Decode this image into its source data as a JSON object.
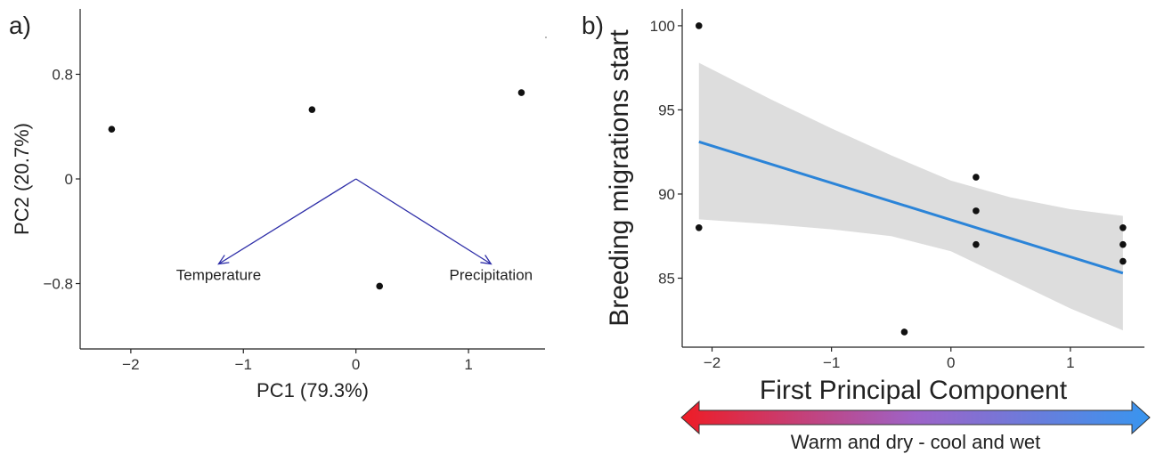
{
  "panels": {
    "a": {
      "label": "a)"
    },
    "b": {
      "label": "b)"
    }
  },
  "colors": {
    "arrow": "#2e2ea8",
    "fit_line": "#2b84d8",
    "ci_band": "#dddddd",
    "points": "#111111",
    "gradient_start": "#ee1c25",
    "gradient_mid": "#9d63c8",
    "gradient_end": "#3895ef"
  },
  "gradient_arrow": {
    "label": "Warm and dry - cool and wet"
  },
  "chart_data": [
    {
      "type": "scatter",
      "panel": "a",
      "title": "",
      "xlabel": "PC1 (79.3%)",
      "ylabel": "PC2 (20.7%)",
      "xlim": [
        -2.45,
        1.68
      ],
      "ylim": [
        -1.3,
        1.3
      ],
      "x_ticks": [
        -2,
        -1,
        0,
        1
      ],
      "x_tick_labels": [
        "−2",
        "−1",
        "0",
        "1"
      ],
      "y_ticks": [
        -0.8,
        0,
        0.8
      ],
      "y_tick_labels": [
        "−0.8",
        "0",
        "0.8"
      ],
      "grid": false,
      "points": [
        {
          "x": -2.17,
          "y": 0.38
        },
        {
          "x": -0.39,
          "y": 0.53
        },
        {
          "x": 0.21,
          "y": -0.82
        },
        {
          "x": 1.47,
          "y": 0.66
        }
      ],
      "loadings": [
        {
          "name": "Temperature",
          "x": -1.22,
          "y": -0.65
        },
        {
          "name": "Precipitation",
          "x": 1.2,
          "y": -0.65
        }
      ]
    },
    {
      "type": "scatter",
      "panel": "b",
      "title": "",
      "xlabel": "First Principal Component",
      "ylabel": "Breeding migrations start",
      "xlim": [
        -2.25,
        1.62
      ],
      "ylim": [
        80.9,
        101
      ],
      "x_ticks": [
        -2,
        -1,
        0,
        1
      ],
      "x_tick_labels": [
        "−2",
        "−1",
        "0",
        "1"
      ],
      "y_ticks": [
        85,
        90,
        95,
        100
      ],
      "y_tick_labels": [
        "85",
        "90",
        "95",
        "100"
      ],
      "grid": false,
      "points": [
        {
          "x": -2.11,
          "y": 100
        },
        {
          "x": -2.11,
          "y": 88
        },
        {
          "x": -0.39,
          "y": 81.8
        },
        {
          "x": 0.21,
          "y": 91
        },
        {
          "x": 0.21,
          "y": 89
        },
        {
          "x": 0.21,
          "y": 87
        },
        {
          "x": 1.44,
          "y": 88
        },
        {
          "x": 1.44,
          "y": 87
        },
        {
          "x": 1.44,
          "y": 86
        }
      ],
      "fit_line": [
        {
          "x": -2.11,
          "y": 93.1
        },
        {
          "x": 1.44,
          "y": 85.3
        }
      ],
      "confidence_band": [
        {
          "x": -2.11,
          "lower": 88.5,
          "upper": 97.8
        },
        {
          "x": -1.5,
          "lower": 88.2,
          "upper": 95.6
        },
        {
          "x": -1.0,
          "lower": 87.9,
          "upper": 93.9
        },
        {
          "x": -0.5,
          "lower": 87.5,
          "upper": 92.3
        },
        {
          "x": 0.0,
          "lower": 86.6,
          "upper": 90.8
        },
        {
          "x": 0.5,
          "lower": 84.9,
          "upper": 89.8
        },
        {
          "x": 1.0,
          "lower": 83.2,
          "upper": 89.1
        },
        {
          "x": 1.44,
          "lower": 81.9,
          "upper": 88.7
        }
      ]
    }
  ]
}
